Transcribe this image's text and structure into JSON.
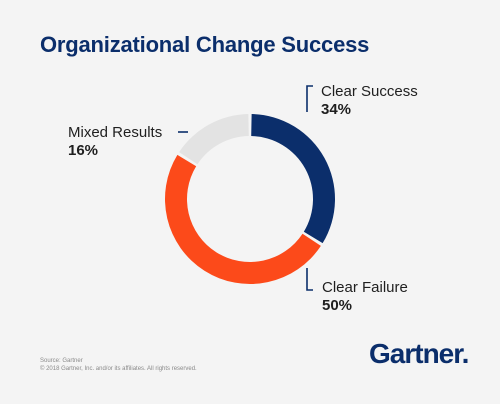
{
  "chart_data": {
    "type": "pie",
    "title": "Organizational Change Success",
    "categories": [
      "Clear Success",
      "Clear Failure",
      "Mixed Results"
    ],
    "values": [
      34,
      50,
      16
    ],
    "value_labels": [
      "34%",
      "50%",
      "16%"
    ],
    "colors": [
      "#0b2e6b",
      "#fc4a1a",
      "#e3e3e3"
    ],
    "donut": true
  },
  "footer": {
    "source": "Source: Gartner",
    "copyright": "© 2018 Gartner, Inc. and/or its affiliates. All rights reserved.",
    "logo": "Gartner"
  }
}
